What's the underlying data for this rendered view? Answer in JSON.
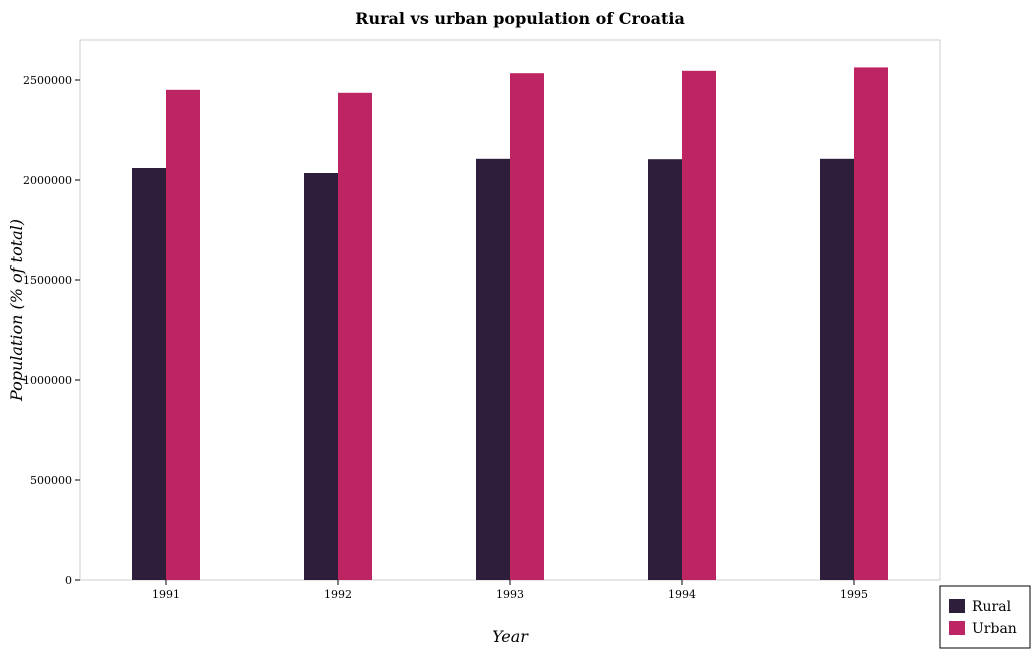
{
  "chart_data": {
    "type": "bar",
    "title": "Rural vs urban population of Croatia",
    "xlabel": "Year",
    "ylabel": "Population (% of total)",
    "categories": [
      "1991",
      "1992",
      "1993",
      "1994",
      "1995"
    ],
    "series": [
      {
        "name": "Rural",
        "color": "#2d1e3c",
        "values": [
          2060000,
          2035000,
          2106000,
          2104000,
          2106000
        ]
      },
      {
        "name": "Urban",
        "color": "#bd2462",
        "values": [
          2451000,
          2436000,
          2534000,
          2546000,
          2563000
        ]
      }
    ],
    "ylim": [
      0,
      2700000
    ],
    "yticks": [
      0,
      500000,
      1000000,
      1500000,
      2000000,
      2500000
    ],
    "ytick_labels": [
      "0",
      "500000",
      "1000000",
      "1500000",
      "2000000",
      "2500000"
    ],
    "grid": false,
    "legend_position": "bottom-right"
  }
}
